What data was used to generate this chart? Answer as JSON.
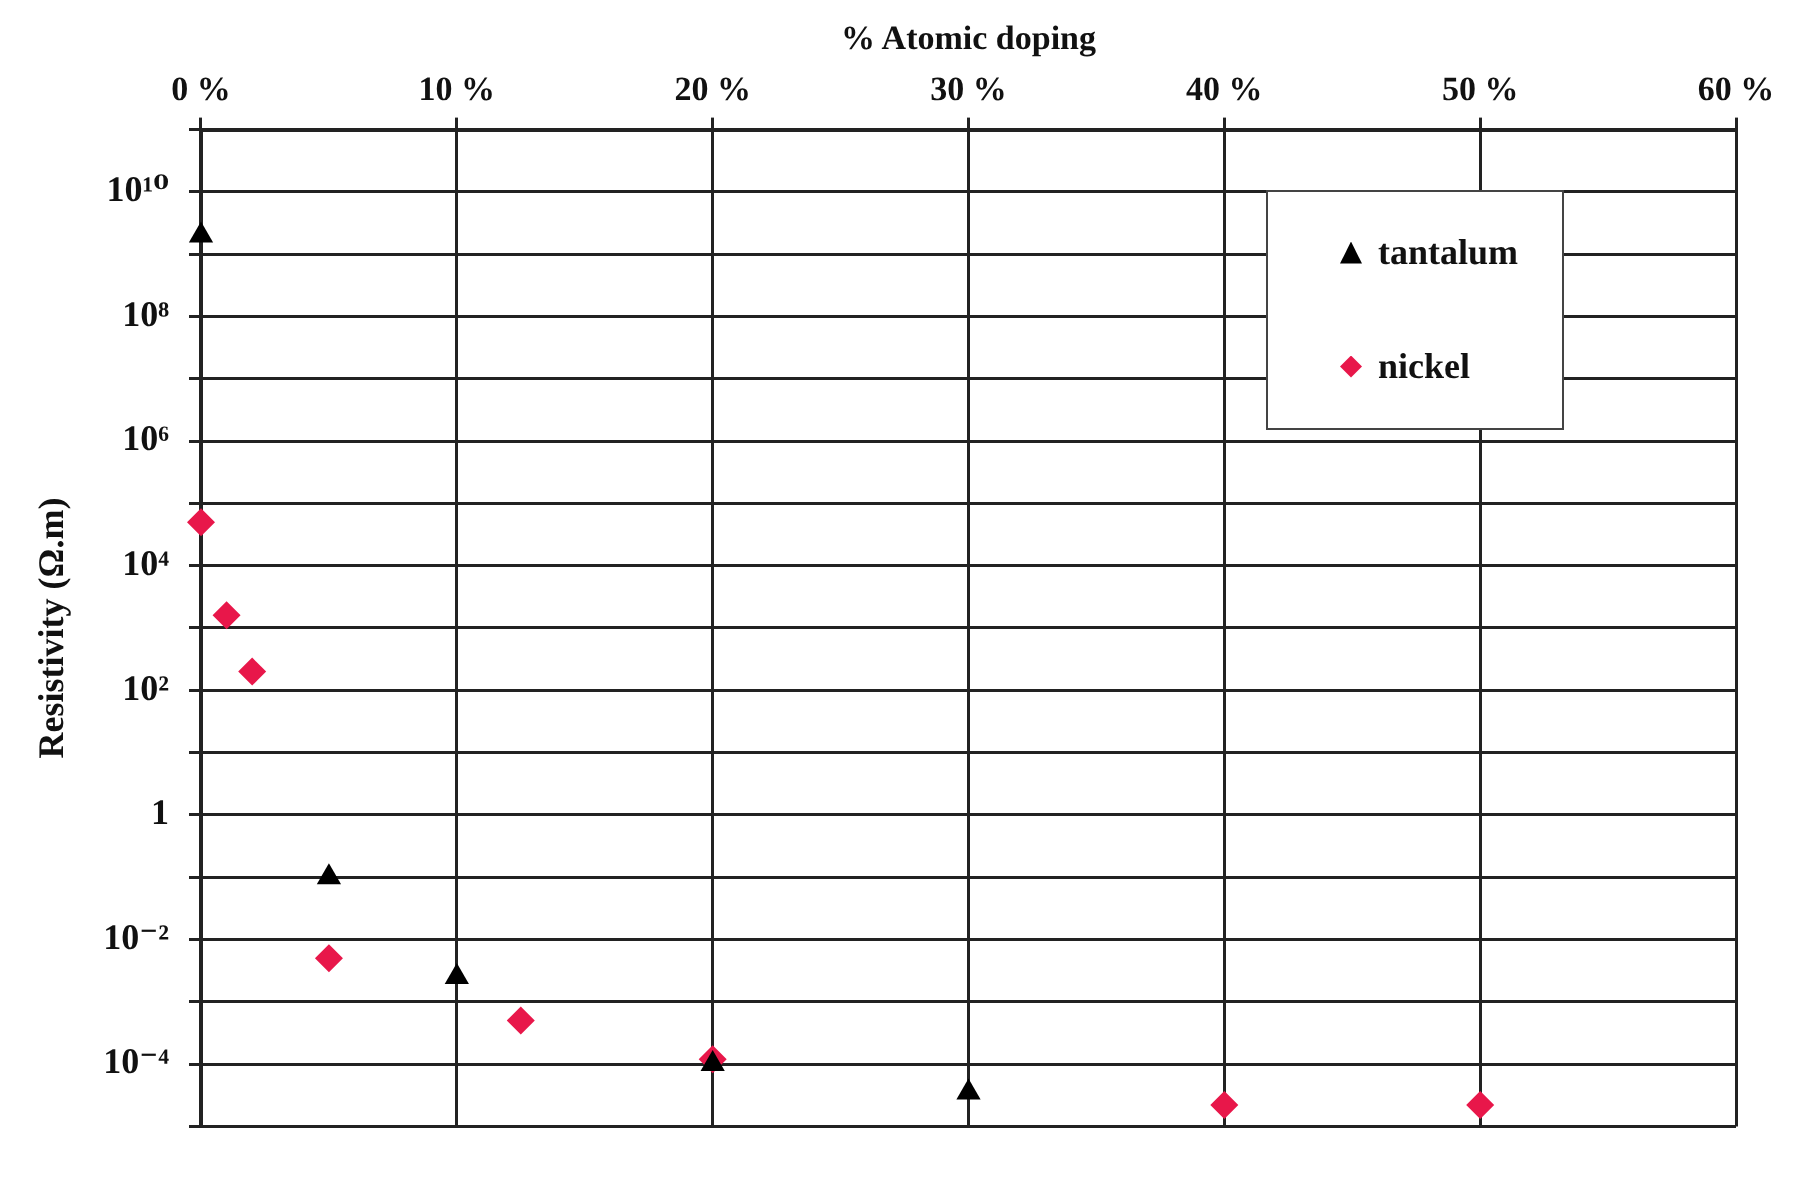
{
  "chart_data": {
    "type": "scatter",
    "xlabel": "% Atomic doping",
    "ylabel": "Resistivity (Ω.m)",
    "xlim": [
      0,
      60
    ],
    "xticks": [
      {
        "value": 0,
        "label": "0 %"
      },
      {
        "value": 10,
        "label": "10 %"
      },
      {
        "value": 20,
        "label": "20 %"
      },
      {
        "value": 30,
        "label": "30 %"
      },
      {
        "value": 40,
        "label": "40 %"
      },
      {
        "value": 50,
        "label": "50 %"
      },
      {
        "value": 60,
        "label": "60 %"
      }
    ],
    "ylim": [
      1e-05,
      100000000000
    ],
    "yticks": [
      {
        "value": 1e-05,
        "label": null
      },
      {
        "value": 0.0001,
        "label": "10⁻⁴"
      },
      {
        "value": 0.001,
        "label": null
      },
      {
        "value": 0.01,
        "label": "10⁻²"
      },
      {
        "value": 0.1,
        "label": null
      },
      1,
      {
        "value": 10,
        "label": null
      },
      {
        "value": 100,
        "label": "10²"
      },
      {
        "value": 1000,
        "label": null
      },
      {
        "value": 10000,
        "label": "10⁴"
      },
      {
        "value": 100000,
        "label": null
      },
      {
        "value": 1000000,
        "label": "10⁶"
      },
      {
        "value": 10000000,
        "label": null
      },
      {
        "value": 100000000,
        "label": "10⁸"
      },
      {
        "value": 1000000000,
        "label": null
      },
      {
        "value": 10000000000,
        "label": "10¹⁰"
      },
      {
        "value": 100000000000,
        "label": null
      }
    ],
    "log": "y",
    "grid": true,
    "legend": "top right",
    "series": [
      {
        "name": "tantalum",
        "color": "#000000",
        "marker": "triangle",
        "x": [
          0,
          5,
          10,
          20,
          30
        ],
        "values": [
          2000000000,
          0.1,
          0.0025,
          0.0001,
          3.5e-05
        ]
      },
      {
        "name": "nickel",
        "color": "#e8174a",
        "marker": "diamond",
        "x": [
          0,
          1,
          2,
          5,
          12.5,
          20,
          40,
          50
        ],
        "values": [
          50000,
          1600,
          200,
          0.005,
          0.0005,
          0.00012,
          2.2e-05,
          2.2e-05
        ]
      }
    ]
  }
}
